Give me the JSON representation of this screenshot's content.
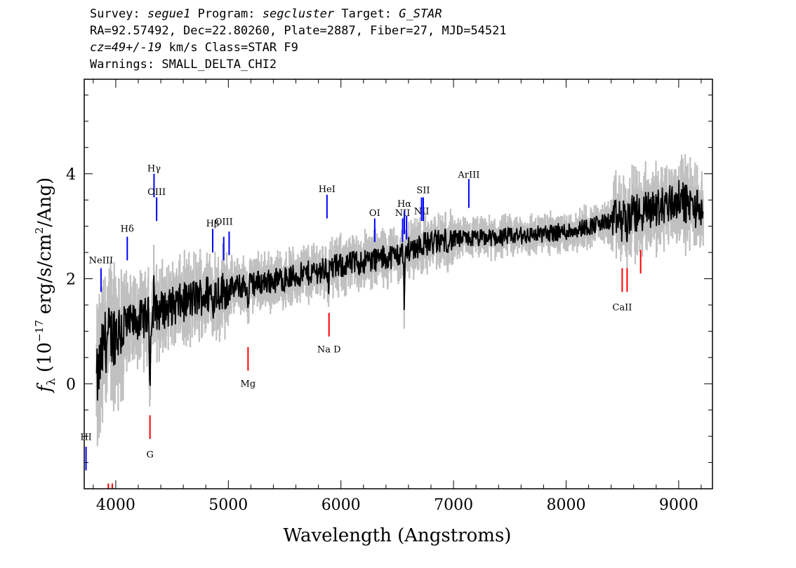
{
  "header": {
    "survey_key": "Survey:",
    "survey": "segue1",
    "program_key": "Program:",
    "program": "segcluster",
    "target_key": "Target:",
    "target": "G_STAR",
    "line2": "RA=92.57492, Dec=22.80260, Plate=2887, Fiber=27, MJD=54521",
    "cz_value": "cz=49+/-19",
    "cz_rest": "km/s Class=STAR F9",
    "line4": "Warnings: SMALL_DELTA_CHI2"
  },
  "chart_data": {
    "type": "line",
    "xlabel": "Wavelength (Angstroms)",
    "ylabel_prefix": "f",
    "ylabel_sub": "λ",
    "ylabel_main": " (10",
    "ylabel_exp": "−17",
    "ylabel_units": " erg/s/cm",
    "ylabel_exp2": "2",
    "ylabel_tail": "/Ang)",
    "xlim": [
      3720,
      9300
    ],
    "ylim": [
      -2.0,
      5.8
    ],
    "x_major_ticks": [
      4000,
      5000,
      6000,
      7000,
      8000,
      9000
    ],
    "x_tick_labels": [
      "4000",
      "5000",
      "6000",
      "7000",
      "8000",
      "9000"
    ],
    "y_major_ticks": [
      0,
      2,
      4
    ],
    "y_tick_labels": [
      "0",
      "2",
      "4"
    ],
    "colors": {
      "spectrum": "#000000",
      "noise": "#c0c0c0",
      "emission": "#0000ff",
      "absorption": "#ff0000",
      "sky": "#000000"
    },
    "continuum_nodes": {
      "x": [
        3830,
        3900,
        4000,
        4200,
        4400,
        4600,
        4800,
        5000,
        5200,
        5500,
        6000,
        6500,
        6700,
        7000,
        7500,
        8000,
        8400,
        8800,
        9000,
        9200
      ],
      "y": [
        0.0,
        0.8,
        1.0,
        1.2,
        1.4,
        1.55,
        1.7,
        1.8,
        1.9,
        2.0,
        2.25,
        2.45,
        2.65,
        2.75,
        2.8,
        2.9,
        3.1,
        3.35,
        3.5,
        3.3
      ]
    },
    "dips": {
      "x": [
        4304,
        4340,
        4861,
        5175,
        5890,
        6563,
        8498,
        8542,
        8662
      ],
      "depth": [
        1.3,
        0.5,
        0.4,
        0.6,
        0.3,
        0.9,
        0.2,
        0.3,
        0.2
      ]
    },
    "spikes": {
      "x": [
        4340
      ],
      "height": [
        1.2
      ]
    },
    "emission_lines": [
      {
        "label": "HI",
        "x": 3736,
        "y0": -1.65,
        "y1": -1.2,
        "ly": -1.02
      },
      {
        "label": "NeIII",
        "x": 3869,
        "y0": 1.75,
        "y1": 2.2,
        "ly": 2.35
      },
      {
        "label": "Hδ",
        "x": 4102,
        "y0": 2.35,
        "y1": 2.8,
        "ly": 2.95
      },
      {
        "label": "Hγ",
        "x": 4340,
        "y0": 3.55,
        "y1": 4.0,
        "ly": 4.1
      },
      {
        "label": "OIII",
        "x": 4363,
        "y0": 3.1,
        "y1": 3.55,
        "ly": 3.65
      },
      {
        "label": "Hβ",
        "x": 4861,
        "y0": 2.5,
        "y1": 2.95,
        "ly": 3.05
      },
      {
        "label": "OIII",
        "x": 4959,
        "y0": 2.35,
        "y1": 2.8,
        "ly": 3.08
      },
      {
        "label": "",
        "x": 5007,
        "y0": 2.45,
        "y1": 2.9,
        "ly": 3.0
      },
      {
        "label": "HeI",
        "x": 5876,
        "y0": 3.15,
        "y1": 3.6,
        "ly": 3.7
      },
      {
        "label": "OI",
        "x": 6300,
        "y0": 2.7,
        "y1": 3.15,
        "ly": 3.25
      },
      {
        "label": "NII",
        "x": 6548,
        "y0": 2.7,
        "y1": 3.15,
        "ly": 3.25
      },
      {
        "label": "Hα",
        "x": 6563,
        "y0": 2.85,
        "y1": 3.3,
        "ly": 3.42
      },
      {
        "label": "",
        "x": 6583,
        "y0": 2.75,
        "y1": 3.2,
        "ly": 3.3
      },
      {
        "label": "NII",
        "x": 6716,
        "y0": 3.1,
        "y1": 3.55,
        "ly": 3.28
      },
      {
        "label": "SII",
        "x": 6731,
        "y0": 3.1,
        "y1": 3.55,
        "ly": 3.68
      },
      {
        "label": "ArIII",
        "x": 7136,
        "y0": 3.35,
        "y1": 3.9,
        "ly": 3.98
      }
    ],
    "absorption_lines": [
      {
        "label": "",
        "x": 3934,
        "y0": -2.0,
        "y1": -1.9,
        "ly": -2.2
      },
      {
        "label": "",
        "x": 3969,
        "y0": -2.0,
        "y1": -1.9,
        "ly": -2.2
      },
      {
        "label": "G",
        "x": 4304,
        "y0": -1.05,
        "y1": -0.6,
        "ly": -1.35
      },
      {
        "label": "Mg",
        "x": 5175,
        "y0": 0.25,
        "y1": 0.7,
        "ly": 0.0
      },
      {
        "label": "Na D",
        "x": 5894,
        "y0": 0.9,
        "y1": 1.35,
        "ly": 0.65
      },
      {
        "label": "CaII",
        "x": 8498,
        "y0": 1.75,
        "y1": 2.2,
        "ly": 1.45
      },
      {
        "label": "",
        "x": 8542,
        "y0": 1.75,
        "y1": 2.2,
        "ly": 1.45
      },
      {
        "label": "",
        "x": 8662,
        "y0": 2.1,
        "y1": 2.55,
        "ly": 1.8
      }
    ]
  }
}
